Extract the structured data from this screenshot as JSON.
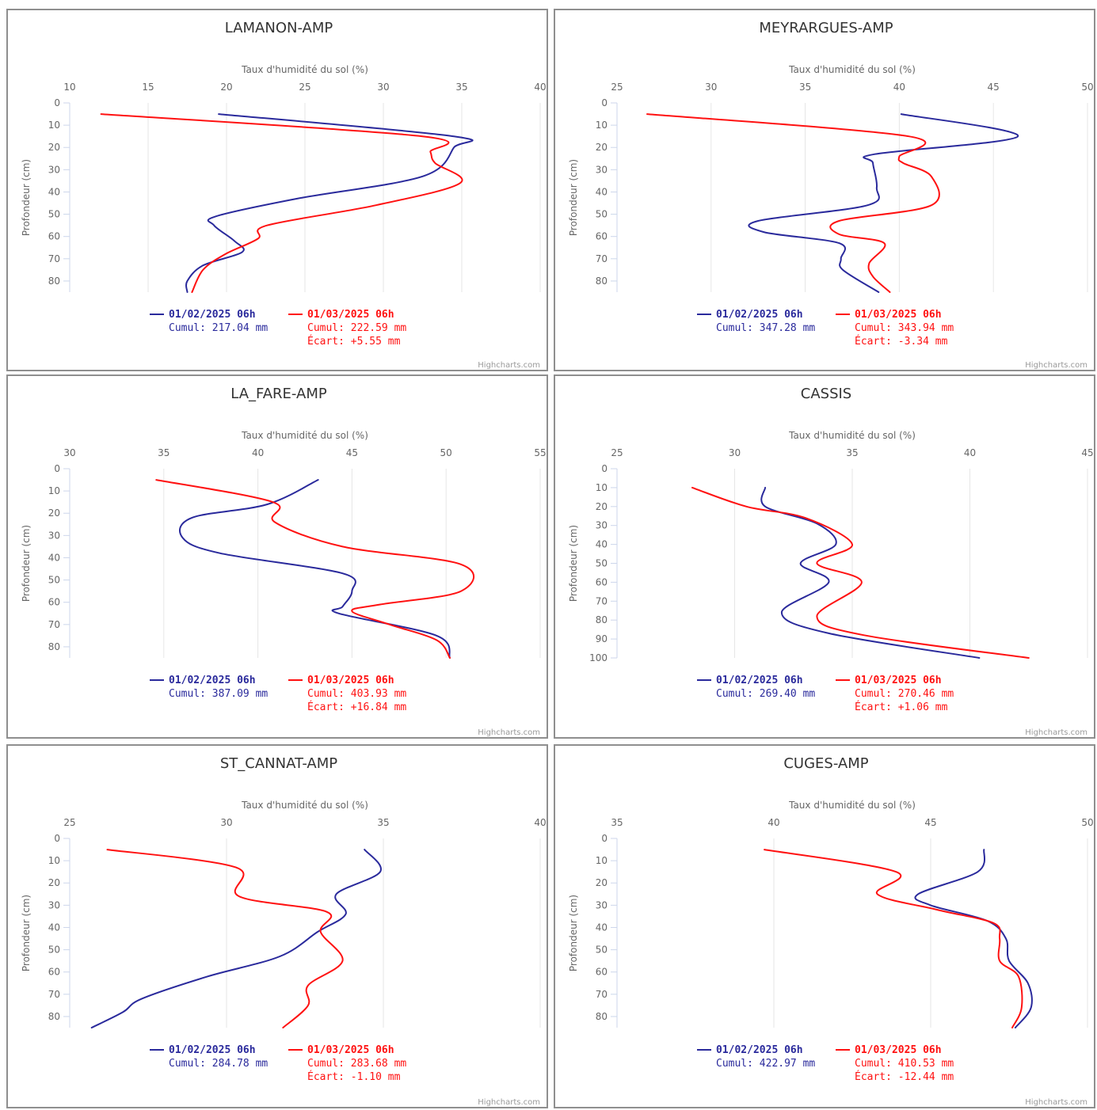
{
  "colors": {
    "series1": "#2a2a9c",
    "series2": "#ff1111",
    "grid": "#e6e6e6",
    "border": "#8f8f8f",
    "text": "#333333",
    "axis_label": "#666666"
  },
  "credit": "Highcharts.com",
  "chart_data": [
    {
      "type": "line",
      "title": "LAMANON-AMP",
      "xlabel": "Taux d'humidité du sol (%)",
      "ylabel": "Profondeur (cm)",
      "xlim": [
        10,
        40
      ],
      "xticks": [
        10,
        15,
        20,
        25,
        30,
        35,
        40
      ],
      "ylim": [
        0,
        85
      ],
      "yticks": [
        0,
        10,
        20,
        30,
        40,
        50,
        60,
        70,
        80
      ],
      "y_reversed": true,
      "x_axis_position": "top",
      "grid": true,
      "legend_position": "bottom-center",
      "series": [
        {
          "name": "01/02/2025 06h",
          "cumul": "Cumul: 217.04 mm",
          "ecart": "",
          "color": "#2a2a9c",
          "points": [
            [
              19.5,
              5
            ],
            [
              34.5,
              15
            ],
            [
              34.5,
              20
            ],
            [
              32.5,
              33
            ],
            [
              24.5,
              43
            ],
            [
              19.3,
              51
            ],
            [
              19.2,
              55
            ],
            [
              20.5,
              62
            ],
            [
              21,
              67
            ],
            [
              18.5,
              73
            ],
            [
              17.5,
              80
            ],
            [
              17.5,
              85
            ]
          ]
        },
        {
          "name": "01/03/2025 06h",
          "cumul": "Cumul: 222.59 mm",
          "ecart": "Écart: +5.55 mm",
          "color": "#ff1111",
          "points": [
            [
              12,
              5
            ],
            [
              32.5,
              15
            ],
            [
              33.0,
              22
            ],
            [
              33.3,
              27
            ],
            [
              34.9,
              36
            ],
            [
              29.5,
              46
            ],
            [
              22.6,
              55
            ],
            [
              22.0,
              61
            ],
            [
              19.9,
              68
            ],
            [
              18.5,
              75
            ],
            [
              17.8,
              85
            ]
          ]
        }
      ]
    },
    {
      "type": "line",
      "title": "MEYRARGUES-AMP",
      "xlabel": "Taux d'humidité du sol (%)",
      "ylabel": "Profondeur (cm)",
      "xlim": [
        25,
        50
      ],
      "xticks": [
        25,
        30,
        35,
        40,
        45,
        50
      ],
      "ylim": [
        0,
        85
      ],
      "yticks": [
        0,
        10,
        20,
        30,
        40,
        50,
        60,
        70,
        80
      ],
      "y_reversed": true,
      "x_axis_position": "top",
      "grid": true,
      "legend_position": "bottom-center",
      "series": [
        {
          "name": "01/02/2025 06h",
          "cumul": "Cumul: 347.28 mm",
          "ecart": "",
          "color": "#2a2a9c",
          "points": [
            [
              40.1,
              5
            ],
            [
              46.3,
              15
            ],
            [
              38.7,
              23
            ],
            [
              38.6,
              27
            ],
            [
              38.8,
              38
            ],
            [
              38.3,
              46
            ],
            [
              32.5,
              53
            ],
            [
              32.8,
              58
            ],
            [
              36.8,
              63
            ],
            [
              36.9,
              70
            ],
            [
              37.0,
              75
            ],
            [
              38.9,
              85
            ]
          ]
        },
        {
          "name": "01/03/2025 06h",
          "cumul": "Cumul: 343.94 mm",
          "ecart": "Écart: -3.34 mm",
          "color": "#ff1111",
          "points": [
            [
              26.6,
              5
            ],
            [
              40.5,
              15
            ],
            [
              40.0,
              24
            ],
            [
              40.2,
              27
            ],
            [
              41.7,
              33
            ],
            [
              41.7,
              46
            ],
            [
              36.8,
              53
            ],
            [
              36.8,
              59
            ],
            [
              39.2,
              63
            ],
            [
              38.4,
              72
            ],
            [
              38.6,
              78
            ],
            [
              39.5,
              85
            ]
          ]
        }
      ]
    },
    {
      "type": "line",
      "title": "LA_FARE-AMP",
      "xlabel": "Taux d'humidité du sol (%)",
      "ylabel": "Profondeur (cm)",
      "xlim": [
        30,
        55
      ],
      "xticks": [
        30,
        35,
        40,
        45,
        50,
        55
      ],
      "ylim": [
        0,
        85
      ],
      "yticks": [
        0,
        10,
        20,
        30,
        40,
        50,
        60,
        70,
        80
      ],
      "y_reversed": true,
      "x_axis_position": "top",
      "grid": true,
      "legend_position": "bottom-center",
      "series": [
        {
          "name": "01/02/2025 06h",
          "cumul": "Cumul: 387.09 mm",
          "ecart": "",
          "color": "#2a2a9c",
          "points": [
            [
              43.2,
              5
            ],
            [
              40.5,
              16
            ],
            [
              36.5,
              22
            ],
            [
              36.0,
              31
            ],
            [
              38.0,
              38
            ],
            [
              44.5,
              47
            ],
            [
              45.0,
              55
            ],
            [
              44.5,
              62
            ],
            [
              44.3,
              65
            ],
            [
              49.5,
              75
            ],
            [
              50.2,
              85
            ]
          ]
        },
        {
          "name": "01/03/2025 06h",
          "cumul": "Cumul: 403.93 mm",
          "ecart": "Écart: +16.84 mm",
          "color": "#ff1111",
          "points": [
            [
              34.6,
              5
            ],
            [
              40.8,
              15
            ],
            [
              40.9,
              24
            ],
            [
              44.5,
              35
            ],
            [
              50.8,
              43
            ],
            [
              50.8,
              55
            ],
            [
              46.5,
              61
            ],
            [
              45.0,
              64
            ],
            [
              47.0,
              70
            ],
            [
              49.5,
              77
            ],
            [
              50.2,
              85
            ]
          ]
        }
      ]
    },
    {
      "type": "line",
      "title": "CASSIS",
      "xlabel": "Taux d'humidité du sol (%)",
      "ylabel": "Profondeur (cm)",
      "xlim": [
        25,
        45
      ],
      "xticks": [
        25,
        30,
        35,
        40,
        45
      ],
      "ylim": [
        0,
        100
      ],
      "yticks": [
        0,
        10,
        20,
        30,
        40,
        50,
        60,
        70,
        80,
        90,
        100
      ],
      "y_reversed": true,
      "x_axis_position": "top",
      "grid": true,
      "legend_position": "bottom-center",
      "series": [
        {
          "name": "01/02/2025 06h",
          "cumul": "Cumul: 269.40 mm",
          "ecart": "",
          "color": "#2a2a9c",
          "points": [
            [
              31.3,
              10
            ],
            [
              31.3,
              20
            ],
            [
              33.5,
              29
            ],
            [
              34.3,
              40
            ],
            [
              32.8,
              50
            ],
            [
              34.0,
              60
            ],
            [
              32.0,
              76
            ],
            [
              34.0,
              87
            ],
            [
              40.4,
              100
            ]
          ]
        },
        {
          "name": "01/03/2025 06h",
          "cumul": "Cumul: 270.46 mm",
          "ecart": "Écart: +1.06 mm",
          "color": "#ff1111",
          "points": [
            [
              28.2,
              10
            ],
            [
              30.5,
              20
            ],
            [
              33.0,
              26
            ],
            [
              35.0,
              40
            ],
            [
              33.5,
              50
            ],
            [
              35.4,
              60
            ],
            [
              33.5,
              78
            ],
            [
              35.5,
              88
            ],
            [
              42.5,
              100
            ]
          ]
        }
      ]
    },
    {
      "type": "line",
      "title": "ST_CANNAT-AMP",
      "xlabel": "Taux d'humidité du sol (%)",
      "ylabel": "Profondeur (cm)",
      "xlim": [
        25,
        40
      ],
      "xticks": [
        25,
        30,
        35,
        40
      ],
      "ylim": [
        0,
        85
      ],
      "yticks": [
        0,
        10,
        20,
        30,
        40,
        50,
        60,
        70,
        80
      ],
      "y_reversed": true,
      "x_axis_position": "top",
      "grid": true,
      "legend_position": "bottom-center",
      "series": [
        {
          "name": "01/02/2025 06h",
          "cumul": "Cumul: 284.78 mm",
          "ecart": "",
          "color": "#2a2a9c",
          "points": [
            [
              34.4,
              5
            ],
            [
              34.9,
              15
            ],
            [
              33.5,
              25
            ],
            [
              33.8,
              34
            ],
            [
              32.9,
              42
            ],
            [
              31.7,
              53
            ],
            [
              29.4,
              62
            ],
            [
              27.3,
              72
            ],
            [
              26.7,
              78
            ],
            [
              25.7,
              85
            ]
          ]
        },
        {
          "name": "01/03/2025 06h",
          "cumul": "Cumul: 283.68 mm",
          "ecart": "Écart: -1.10 mm",
          "color": "#ff1111",
          "points": [
            [
              26.2,
              5
            ],
            [
              30.3,
              13
            ],
            [
              30.4,
              26
            ],
            [
              33.2,
              33
            ],
            [
              33.0,
              42
            ],
            [
              33.7,
              55
            ],
            [
              32.6,
              66
            ],
            [
              32.6,
              75
            ],
            [
              31.8,
              85
            ]
          ]
        }
      ]
    },
    {
      "type": "line",
      "title": "CUGES-AMP",
      "xlabel": "Taux d'humidité du sol (%)",
      "ylabel": "Profondeur (cm)",
      "xlim": [
        35,
        50
      ],
      "xticks": [
        35,
        40,
        45,
        50
      ],
      "ylim": [
        0,
        85
      ],
      "yticks": [
        0,
        10,
        20,
        30,
        40,
        50,
        60,
        70,
        80
      ],
      "y_reversed": true,
      "x_axis_position": "top",
      "grid": true,
      "legend_position": "bottom-center",
      "series": [
        {
          "name": "01/02/2025 06h",
          "cumul": "Cumul: 422.97 mm",
          "ecart": "",
          "color": "#2a2a9c",
          "points": [
            [
              46.7,
              5
            ],
            [
              46.5,
              15
            ],
            [
              44.6,
              25
            ],
            [
              45.0,
              30
            ],
            [
              46.8,
              37
            ],
            [
              47.4,
              45
            ],
            [
              47.5,
              55
            ],
            [
              48.1,
              65
            ],
            [
              48.2,
              76
            ],
            [
              47.7,
              85
            ]
          ]
        },
        {
          "name": "01/03/2025 06h",
          "cumul": "Cumul: 410.53 mm",
          "ecart": "Écart: -12.44 mm",
          "color": "#ff1111",
          "points": [
            [
              39.7,
              5
            ],
            [
              43.9,
              15
            ],
            [
              43.3,
              25
            ],
            [
              45.2,
              32
            ],
            [
              47.0,
              38
            ],
            [
              47.2,
              45
            ],
            [
              47.2,
              55
            ],
            [
              47.8,
              62
            ],
            [
              47.9,
              76
            ],
            [
              47.6,
              85
            ]
          ]
        }
      ]
    }
  ]
}
